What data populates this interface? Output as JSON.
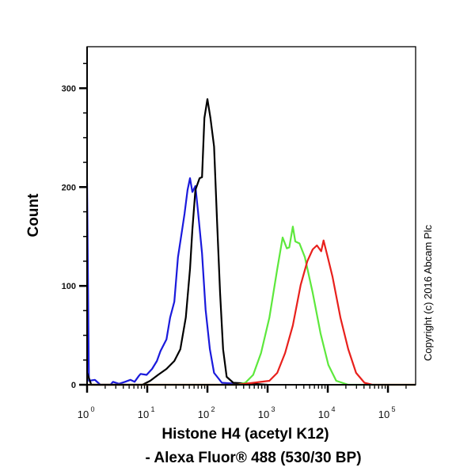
{
  "chart_data": {
    "type": "line",
    "title": "",
    "xlabel": "Histone H4 (acetyl K12)",
    "xlabel_line2": "- Alexa Fluor® 488 (530/30 BP)",
    "ylabel": "Count",
    "x_scale": "log10",
    "xlim_log10": [
      0,
      5.46
    ],
    "ylim": [
      0,
      342
    ],
    "y_ticks": [
      0,
      100,
      200,
      300
    ],
    "y_tick_labels": [
      "0",
      "100",
      "200",
      "300"
    ],
    "x_ticks_log10": [
      0,
      1,
      2,
      3,
      4,
      5
    ],
    "x_tick_base": "10",
    "x_tick_exponents": [
      "0",
      "1",
      "2",
      "3",
      "4",
      "5"
    ],
    "grid": false,
    "annotation": "Copyright (c) 2016 Abcam Plc",
    "series": [
      {
        "name": "blue",
        "color": "#1a1adc",
        "x_log10": [
          0,
          0.03,
          0.13,
          0.22,
          0.39,
          0.43,
          0.53,
          0.63,
          0.72,
          0.79,
          0.86,
          0.89,
          0.99,
          1.08,
          1.16,
          1.22,
          1.32,
          1.38,
          1.45,
          1.51,
          1.58,
          1.62,
          1.67,
          1.71,
          1.75,
          1.8,
          1.84,
          1.91,
          1.97,
          2.04,
          2.11,
          2.24,
          2.5,
          2.8
        ],
        "y": [
          204,
          4,
          5,
          0,
          0,
          3,
          1,
          3,
          5,
          3,
          9,
          11,
          10,
          16,
          24,
          34,
          46,
          68,
          84,
          129,
          157,
          173,
          197,
          209,
          195,
          201,
          177,
          133,
          76,
          36,
          12,
          2,
          1,
          0
        ]
      },
      {
        "name": "black",
        "color": "#000000",
        "x_log10": [
          0,
          0.07,
          0.92,
          1.05,
          1.18,
          1.32,
          1.45,
          1.55,
          1.64,
          1.71,
          1.75,
          1.8,
          1.87,
          1.91,
          1.95,
          2.0,
          2.05,
          2.11,
          2.16,
          2.21,
          2.26,
          2.32,
          2.43,
          2.76,
          3.0
        ],
        "y": [
          12,
          0,
          0,
          4,
          10,
          16,
          24,
          36,
          68,
          117,
          157,
          197,
          209,
          210,
          270,
          289,
          270,
          241,
          165,
          93,
          36,
          8,
          2,
          1,
          0
        ]
      },
      {
        "name": "green",
        "color": "#5de83c",
        "x_log10": [
          0,
          2.5,
          2.63,
          2.76,
          2.89,
          3.03,
          3.16,
          3.25,
          3.32,
          3.36,
          3.42,
          3.46,
          3.53,
          3.62,
          3.75,
          3.88,
          4.01,
          4.14,
          4.34,
          5.46
        ],
        "y": [
          0,
          0,
          2,
          10,
          32,
          68,
          117,
          149,
          138,
          139,
          160,
          145,
          143,
          129,
          93,
          52,
          20,
          4,
          0,
          0
        ]
      },
      {
        "name": "red",
        "color": "#e8201c",
        "x_log10": [
          0,
          2.5,
          3.03,
          3.16,
          3.29,
          3.42,
          3.55,
          3.66,
          3.75,
          3.82,
          3.89,
          3.93,
          4.0,
          4.08,
          4.21,
          4.34,
          4.47,
          4.61,
          4.74,
          5.46
        ],
        "y": [
          0,
          0,
          4,
          12,
          32,
          60,
          101,
          125,
          137,
          141,
          135,
          146,
          129,
          109,
          68,
          36,
          12,
          2,
          0,
          0
        ]
      }
    ]
  }
}
